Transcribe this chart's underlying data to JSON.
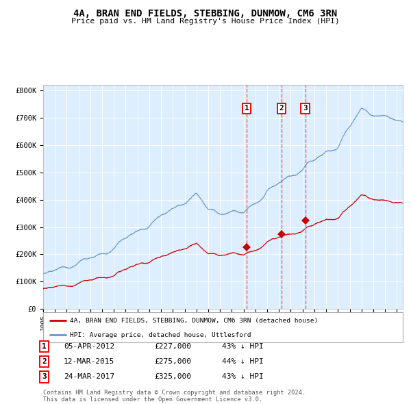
{
  "title": "4A, BRAN END FIELDS, STEBBING, DUNMOW, CM6 3RN",
  "subtitle": "Price paid vs. HM Land Registry's House Price Index (HPI)",
  "legend_red": "4A, BRAN END FIELDS, STEBBING, DUNMOW, CM6 3RN (detached house)",
  "legend_blue": "HPI: Average price, detached house, Uttlesford",
  "transactions": [
    {
      "num": 1,
      "date": "05-APR-2012",
      "price": 227000,
      "pct": "43%",
      "dir": "↓",
      "x_year": 2012.27
    },
    {
      "num": 2,
      "date": "12-MAR-2015",
      "price": 275000,
      "pct": "44%",
      "dir": "↓",
      "x_year": 2015.2
    },
    {
      "num": 3,
      "date": "24-MAR-2017",
      "price": 325000,
      "pct": "43%",
      "dir": "↓",
      "x_year": 2017.23
    }
  ],
  "footer1": "Contains HM Land Registry data © Crown copyright and database right 2024.",
  "footer2": "This data is licensed under the Open Government Licence v3.0.",
  "ylim": [
    0,
    820000
  ],
  "xlim_start": 1995.0,
  "xlim_end": 2025.5,
  "background_plot": "#ddeeff",
  "background_fig": "#ffffff",
  "color_red": "#cc0000",
  "color_blue": "#6699cc",
  "color_dashed": "#ff4444"
}
